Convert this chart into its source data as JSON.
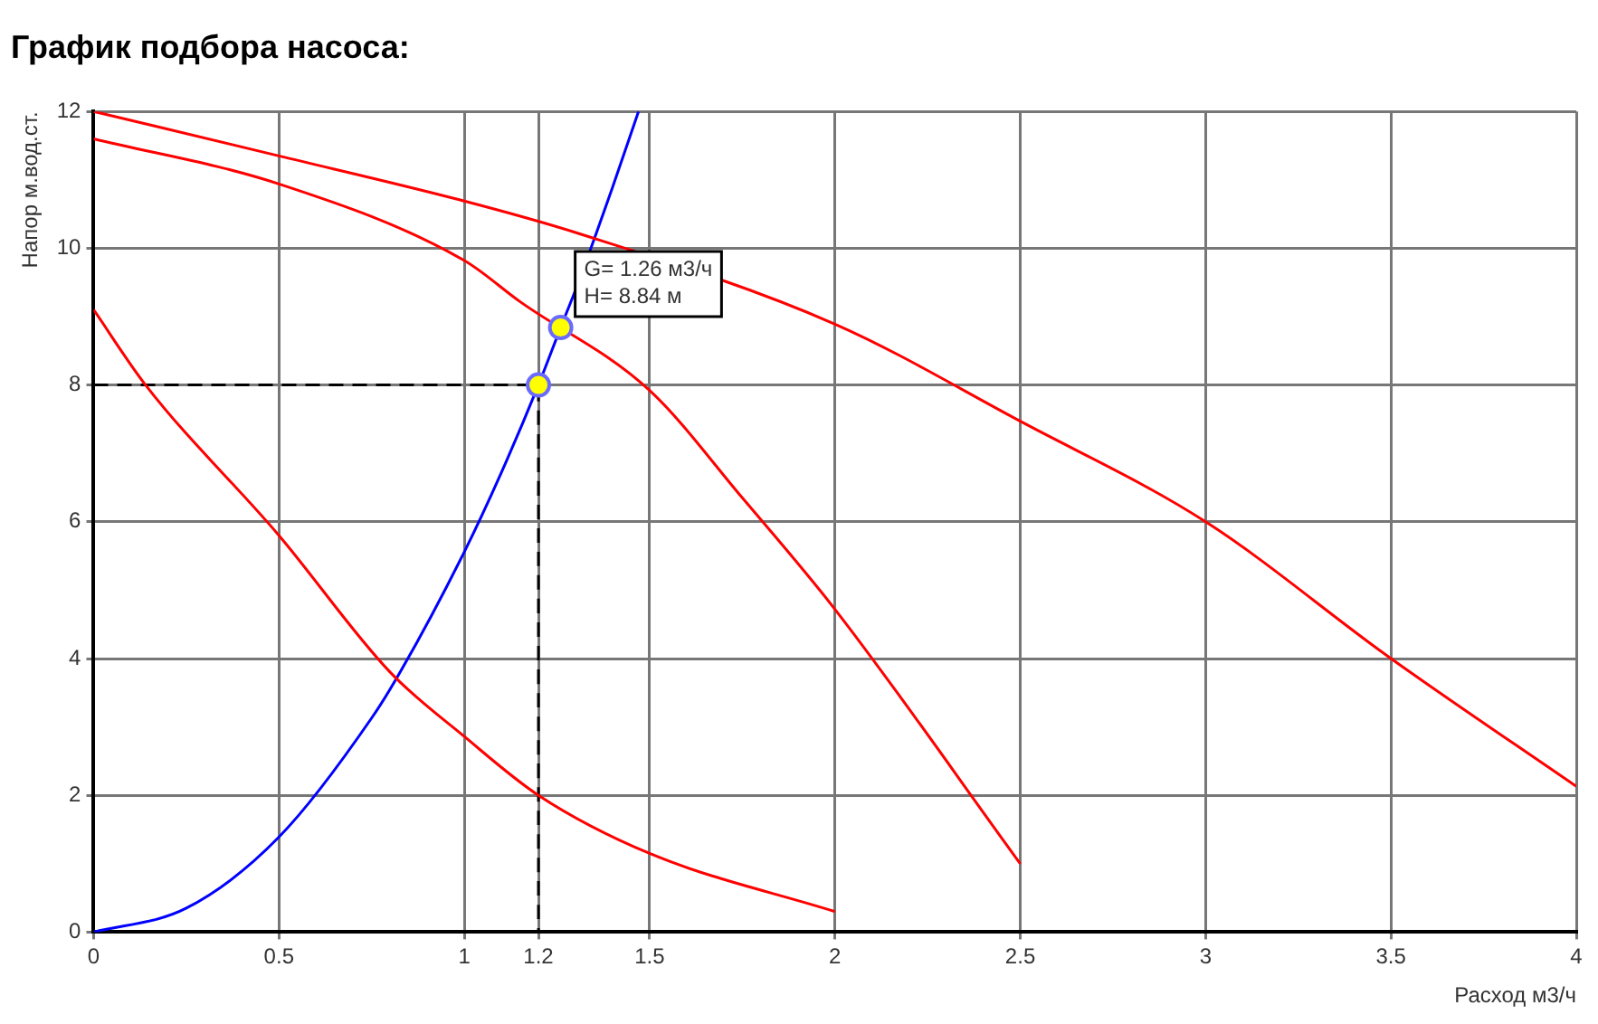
{
  "chart_data": {
    "type": "line",
    "title": "График подбора насоса:",
    "xlabel": "Расход м3/ч",
    "ylabel": "Напор м.вод.ст.",
    "xlim": [
      0,
      4
    ],
    "xticks": [
      0,
      0.5,
      1,
      1.2,
      1.5,
      2,
      2.5,
      3,
      3.5,
      4
    ],
    "ylim": [
      0,
      12
    ],
    "yticks": [
      0,
      2,
      4,
      6,
      8,
      10,
      12
    ],
    "grid": true,
    "legend": false,
    "marker": "none",
    "line_style": "solid",
    "series": [
      {
        "color": "#ff0000",
        "x": [
          0,
          0.5,
          1,
          1.3,
          2,
          2.5,
          3,
          3.5,
          4
        ],
        "values": [
          12,
          11.35,
          10.69,
          10.23,
          8.89,
          7.47,
          6.0,
          4.0,
          2.13
        ]
      },
      {
        "color": "#ff0000",
        "x": [
          0,
          0.5,
          1,
          1.15,
          1.5,
          1.75,
          2,
          2.5
        ],
        "values": [
          11.6,
          10.94,
          9.82,
          9.22,
          7.92,
          6.35,
          4.72,
          1.0
        ]
      },
      {
        "color": "#ff0000",
        "x": [
          0,
          0.14,
          0.5,
          0.8,
          1,
          1.2,
          1.5,
          2
        ],
        "values": [
          9.1,
          8.0,
          5.8,
          3.8,
          2.86,
          2.0,
          1.15,
          0.3
        ]
      },
      {
        "color": "#0000ff",
        "x": [
          0,
          0.25,
          0.5,
          0.75,
          0.83,
          1,
          1.1,
          1.2,
          1.26,
          1.3,
          1.4,
          1.47
        ],
        "values": [
          0,
          0.35,
          1.39,
          3.13,
          3.83,
          5.56,
          6.72,
          8.0,
          8.84,
          9.39,
          10.89,
          12.0
        ]
      },
      {
        "color": "#000000",
        "line_style": "dashed",
        "x": [
          0,
          1.2,
          1.2
        ],
        "values": [
          8,
          8,
          0
        ]
      },
      {
        "type": "scatter",
        "marker": "circle",
        "color": "#ffff00",
        "x": [
          1.2,
          1.26
        ],
        "values": [
          8,
          8.84
        ]
      }
    ],
    "annotations": [
      {
        "text": "G= 1.26 м3/ч\nH= 8.84 м",
        "x": 1.26,
        "y": 8.84
      }
    ]
  }
}
